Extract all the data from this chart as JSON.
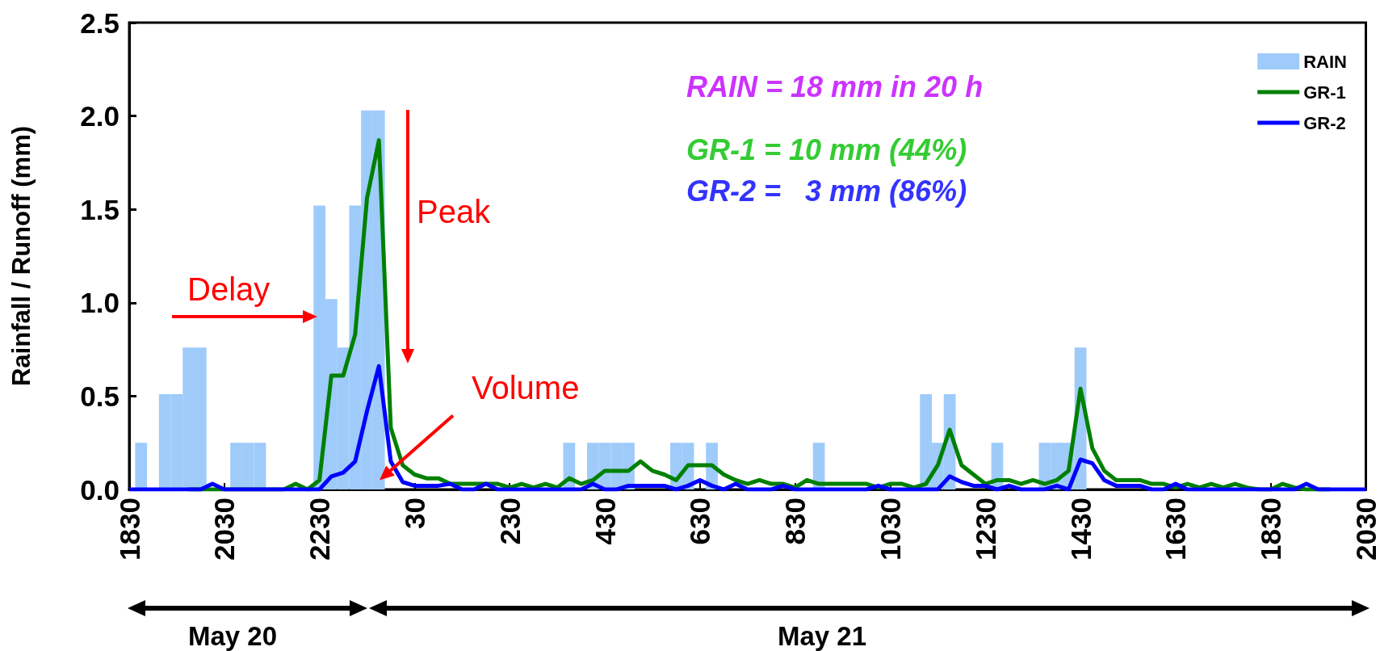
{
  "chart_data": {
    "type": "line",
    "ylabel": "Rainfall / Runoff (mm)",
    "legend": "top right",
    "marker": "none",
    "grid": false,
    "categories": [
      "1830",
      null,
      null,
      null,
      null,
      null,
      null,
      null,
      "2030",
      null,
      null,
      null,
      null,
      null,
      null,
      null,
      "2230",
      null,
      null,
      null,
      null,
      null,
      null,
      null,
      "30",
      null,
      null,
      null,
      null,
      null,
      null,
      null,
      "230",
      null,
      null,
      null,
      null,
      null,
      null,
      null,
      "430",
      null,
      null,
      null,
      null,
      null,
      null,
      null,
      "630",
      null,
      null,
      null,
      null,
      null,
      null,
      null,
      "830",
      null,
      null,
      null,
      null,
      null,
      null,
      null,
      "1030",
      null,
      null,
      null,
      null,
      null,
      null,
      null,
      "1230",
      null,
      null,
      null,
      null,
      null,
      null,
      null,
      "1430",
      null,
      null,
      null,
      null,
      null,
      null,
      null,
      "1630",
      null,
      null,
      null,
      null,
      null,
      null,
      null,
      "1830",
      null,
      null,
      null,
      null,
      null,
      null,
      null,
      "2030"
    ],
    "ylim": [
      0,
      2.5
    ],
    "yticks": [
      {
        "value": 0,
        "label": "0.0"
      },
      {
        "value": 0.5,
        "label": "0.5"
      },
      {
        "value": 1,
        "label": "1.0"
      },
      {
        "value": 1.5,
        "label": "1.5"
      },
      {
        "value": 2,
        "label": "2.0"
      },
      {
        "value": 2.5,
        "label": "2.5"
      }
    ],
    "series": [
      {
        "name": "RAIN",
        "type": "bar",
        "color": "#9ecbfa",
        "values": [
          null,
          0.25,
          null,
          0.51,
          0.51,
          0.76,
          0.76,
          null,
          null,
          0.25,
          0.25,
          0.25,
          null,
          null,
          null,
          null,
          1.52,
          1.02,
          0.76,
          1.52,
          2.03,
          2.03,
          null,
          null,
          null,
          null,
          null,
          null,
          null,
          null,
          null,
          null,
          null,
          null,
          null,
          null,
          null,
          0.25,
          null,
          0.25,
          0.25,
          0.25,
          0.25,
          null,
          null,
          null,
          0.25,
          0.25,
          null,
          0.25,
          null,
          null,
          null,
          null,
          null,
          null,
          null,
          null,
          0.25,
          null,
          null,
          null,
          null,
          null,
          null,
          null,
          null,
          0.51,
          0.25,
          0.51,
          null,
          null,
          null,
          0.25,
          null,
          null,
          null,
          0.25,
          0.25,
          0.25,
          0.76,
          null,
          null,
          null,
          null,
          null,
          null,
          null,
          null,
          null,
          null,
          null,
          null,
          null,
          null,
          null,
          null,
          null,
          null,
          null,
          null,
          null,
          null,
          null,
          null
        ]
      },
      {
        "name": "GR-1",
        "color": "#008000",
        "values": [
          null,
          null,
          null,
          null,
          null,
          0,
          0,
          0,
          0,
          0,
          0,
          0,
          0,
          0,
          0.03,
          0,
          0.05,
          0.61,
          0.61,
          0.83,
          1.56,
          1.87,
          0.33,
          0.13,
          0.08,
          0.06,
          0.06,
          0.03,
          0.03,
          0.03,
          0.03,
          0.03,
          0.01,
          0.03,
          0.01,
          0.03,
          0.01,
          0.06,
          0.03,
          0.05,
          0.1,
          0.1,
          0.1,
          0.15,
          0.1,
          0.08,
          0.05,
          0.13,
          0.13,
          0.13,
          0.08,
          0.05,
          0.03,
          0.05,
          0.03,
          0.03,
          0.01,
          0.05,
          0.03,
          0.03,
          0.03,
          0.03,
          0.03,
          0.01,
          0.03,
          0.03,
          0.01,
          0.03,
          0.13,
          0.32,
          0.13,
          0.08,
          0.03,
          0.05,
          0.05,
          0.03,
          0.05,
          0.03,
          0.05,
          0.1,
          0.54,
          0.22,
          0.1,
          0.05,
          0.05,
          0.05,
          0.03,
          0.03,
          0.01,
          0.03,
          0.01,
          0.03,
          0.01,
          0.03,
          0.01,
          0,
          0,
          0.03,
          0.01,
          0,
          0,
          0,
          null,
          null,
          null
        ]
      },
      {
        "name": "GR-2",
        "color": "#0000ff",
        "values": [
          0,
          0,
          0,
          0,
          0,
          0,
          0,
          0.03,
          0,
          0,
          0,
          0,
          0,
          0,
          0,
          0,
          0,
          0.07,
          0.09,
          0.15,
          0.42,
          0.66,
          0.15,
          0.04,
          0.02,
          0.02,
          0.02,
          0.03,
          0,
          0,
          0.03,
          0,
          0,
          0,
          0,
          0,
          0,
          0,
          0,
          0.03,
          0,
          0,
          0.02,
          0.02,
          0.02,
          0.02,
          0,
          0.02,
          0.05,
          0.02,
          0,
          0.03,
          0,
          0,
          0,
          0.02,
          0,
          0,
          0,
          0,
          0,
          0,
          0,
          0.02,
          0,
          0,
          0,
          0,
          0,
          0.07,
          0.04,
          0.02,
          0.02,
          0,
          0.02,
          0,
          0,
          0,
          0.02,
          0,
          0.16,
          0.14,
          0.05,
          0.02,
          0.02,
          0.02,
          0,
          0,
          0.03,
          0,
          0,
          0,
          0,
          0,
          0,
          0,
          0,
          0,
          0,
          0.03,
          0,
          0,
          0,
          0,
          0
        ]
      }
    ],
    "annotations": [
      "RAIN = 18 mm in 20 h",
      "GR-1 = 10 mm (44%)",
      "GR-2 =   3 mm (86%)",
      "Peak",
      "Delay",
      {
        "text": "Volume",
        "y": 0.05
      },
      "May 20",
      "May 21"
    ]
  }
}
